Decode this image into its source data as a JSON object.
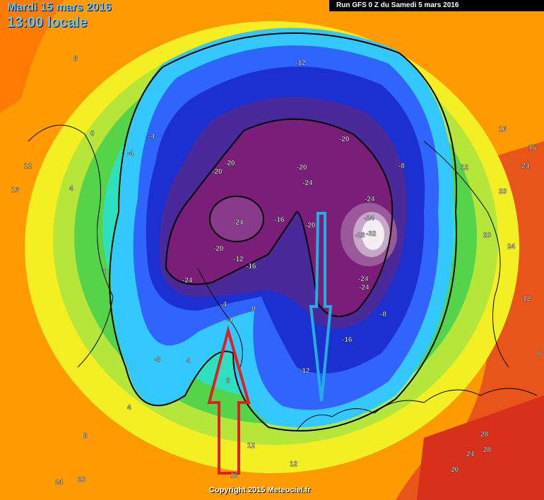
{
  "header": {
    "date_line": "Mardi 15 mars 2016",
    "time_line": "13:00 locale",
    "run_info": "Run GFS 0 Z du Samedi 5 mars 2016"
  },
  "credit": "Copyright 2015 Meteociel.fr",
  "colors": {
    "cold_core_magenta": "#7a1e7a",
    "deep_blue": "#1c2fd0",
    "blue": "#2f64ff",
    "cyan": "#33c8ff",
    "green": "#55d44a",
    "yellow": "#f4ef22",
    "orange": "#ff9a00",
    "red": "#e83a1a",
    "red_arrow": "#e02020",
    "blue_arrow": "#22aee0"
  },
  "annotations": [
    {
      "icon": "up-arrow-icon",
      "color": "red",
      "direction": "up"
    },
    {
      "icon": "down-arrow-icon",
      "color": "blue",
      "direction": "down"
    }
  ],
  "isotherm_labels": [
    "-24",
    "-20",
    "-20",
    "-24",
    "-20",
    "-20",
    "-24",
    "-16",
    "-12",
    "-16",
    "-20",
    "-24",
    "-28",
    "-32",
    "-24",
    "-20",
    "-24",
    "-24",
    "-16",
    "-12",
    "-12",
    "-8",
    "-8",
    "-4",
    "-4",
    "-4",
    "0",
    "0",
    "4",
    "4",
    "8",
    "8",
    "12",
    "12",
    "16",
    "16",
    "16",
    "20",
    "20",
    "24",
    "24",
    "28",
    "28",
    "24",
    "20",
    "12",
    "8",
    "4",
    "0",
    "-4",
    "-8",
    "12",
    "16",
    "20",
    "24",
    "12",
    "8"
  ]
}
